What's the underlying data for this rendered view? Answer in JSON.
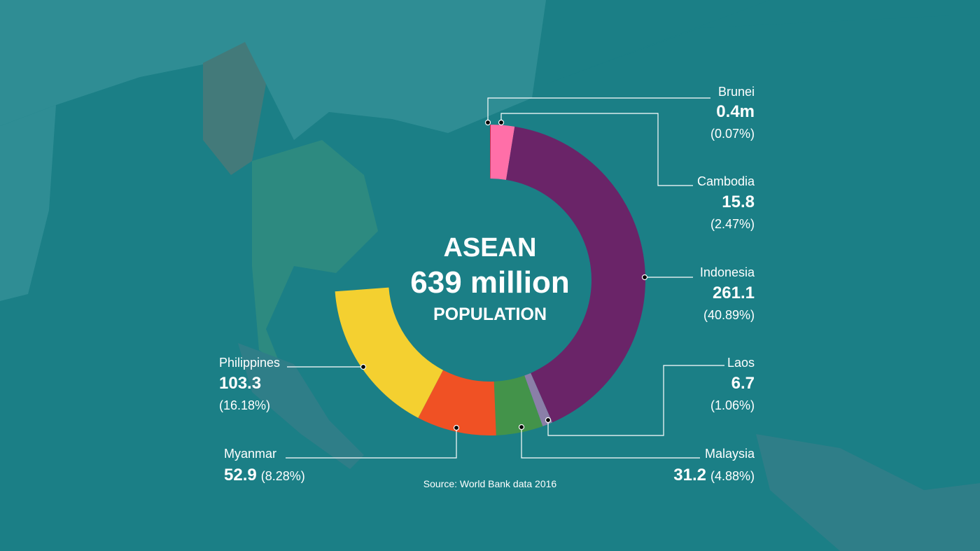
{
  "chart_data": {
    "type": "donut",
    "title": "ASEAN",
    "subtitle": "639 million",
    "subtitle2": "POPULATION",
    "source": "Source: World Bank data 2016",
    "categories": [
      "Brunei",
      "Cambodia",
      "Indonesia",
      "Laos",
      "Malaysia",
      "Myanmar",
      "Philippines"
    ],
    "values": [
      0.4,
      15.8,
      261.1,
      6.7,
      31.2,
      52.9,
      103.3
    ],
    "value_labels": [
      "0.4m",
      "15.8",
      "261.1",
      "6.7",
      "31.2",
      "52.9",
      "103.3"
    ],
    "shares": [
      0.07,
      2.47,
      40.89,
      1.06,
      4.88,
      8.28,
      16.18
    ],
    "share_labels": [
      "(0.07%)",
      "(2.47%)",
      "(40.89%)",
      "(1.06%)",
      "(4.88%)",
      "(8.28%)",
      "(16.18%)"
    ],
    "colors": [
      "#e0183c",
      "#ff6fa8",
      "#6a2468",
      "#8a7fa8",
      "#43934a",
      "#f05124",
      "#f4d030"
    ]
  }
}
